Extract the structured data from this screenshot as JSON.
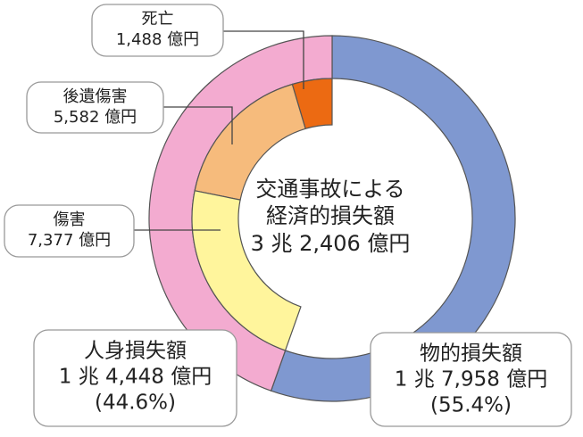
{
  "chart_data": {
    "type": "donut",
    "rings": [
      {
        "categories": [
          "物的損失額",
          "人身損失額"
        ],
        "values": [
          17958,
          14448
        ],
        "value_labels": [
          "1 兆 7,958 億円",
          "1 兆 4,448 億円"
        ],
        "percentages": [
          55.4,
          44.6
        ],
        "percentage_labels": [
          "(55.4%)",
          "(44.6%)"
        ],
        "colors": [
          "#7f98d0",
          "#f3abd0"
        ]
      },
      {
        "categories": [
          "死亡",
          "後遺傷害",
          "傷害"
        ],
        "values": [
          1488,
          5582,
          7377
        ],
        "value_labels": [
          "1,488 億円",
          "5,582 億円",
          "7,377 億円"
        ],
        "colors": [
          "#ec6a12",
          "#f6bb7c",
          "#fff59c"
        ]
      }
    ],
    "center": {
      "title_lines": [
        "交通事故による",
        "経済的損失額"
      ],
      "total": 32406,
      "total_label": "3 兆 2,406 億円"
    }
  }
}
